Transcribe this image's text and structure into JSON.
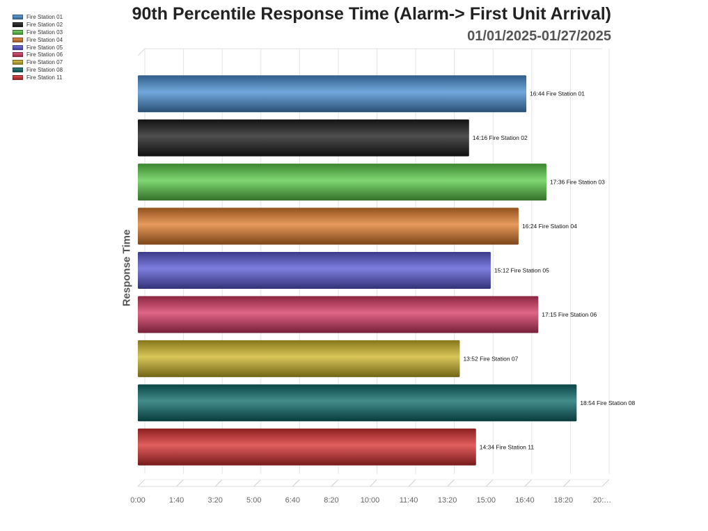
{
  "chart_data": {
    "type": "bar",
    "orientation": "horizontal",
    "title": "90th Percentile Response Time (Alarm-> First Unit Arrival)",
    "subtitle": "01/01/2025-01/27/2025",
    "ylabel": "Response Time",
    "xlabel": "",
    "xlim": [
      0,
      1200
    ],
    "x_tick_values": [
      0,
      100,
      200,
      300,
      400,
      500,
      600,
      700,
      800,
      900,
      1000,
      1100,
      1200
    ],
    "x_tick_labels": [
      "0:00",
      "1:40",
      "3:20",
      "5:00",
      "6:40",
      "8:20",
      "10:00",
      "11:40",
      "13:20",
      "15:00",
      "16:40",
      "18:20",
      "20:…"
    ],
    "grid": true,
    "legend_position": "top-left",
    "categories": [
      "Fire Station 01",
      "Fire Station 02",
      "Fire Station 03",
      "Fire Station 04",
      "Fire Station 05",
      "Fire Station 06",
      "Fire Station 07",
      "Fire Station 08",
      "Fire Station 11"
    ],
    "values": [
      1004,
      856,
      1056,
      984,
      912,
      1035,
      832,
      1134,
      874
    ],
    "value_labels": [
      "16:44",
      "14:16",
      "17:36",
      "16:24",
      "15:12",
      "17:15",
      "13:52",
      "18:54",
      "14:34"
    ],
    "colors": [
      "#4a90d4",
      "#1c1c1c",
      "#5ccc4a",
      "#e07d2e",
      "#5a5ad6",
      "#d63a64",
      "#cdb62a",
      "#0f6b6b",
      "#d83030"
    ]
  }
}
